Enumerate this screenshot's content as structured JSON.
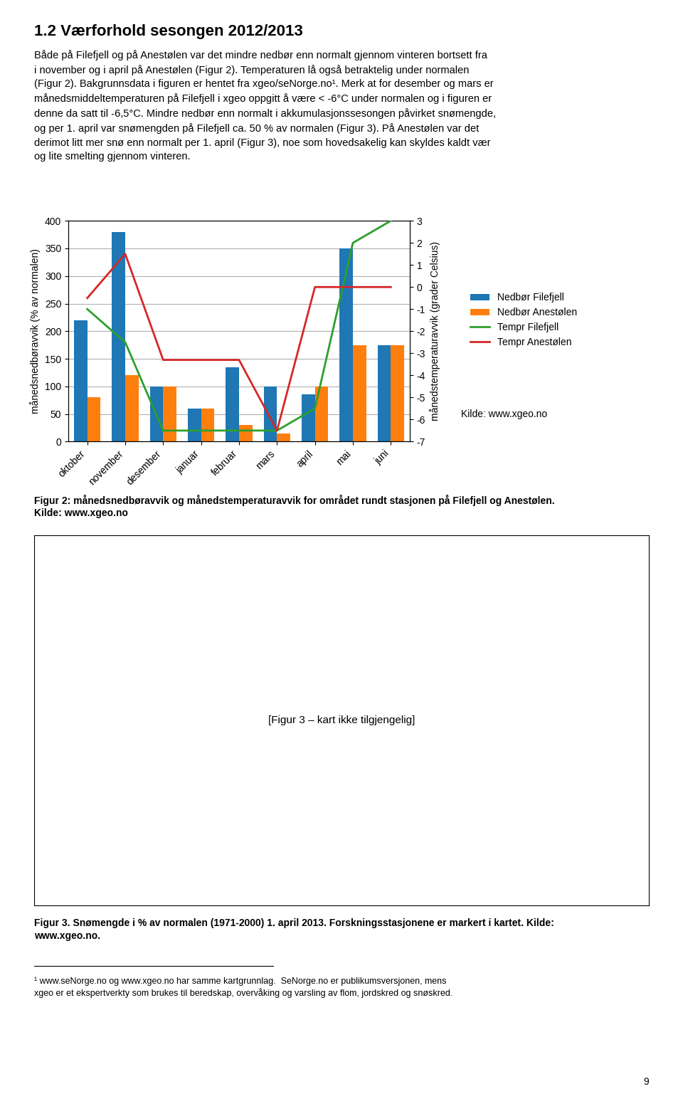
{
  "chart_data": {
    "type": "bar",
    "title": "1.2 Værforhold sesongen 2012/2013",
    "categories": [
      "oktober",
      "november",
      "desember",
      "januar",
      "februar",
      "mars",
      "april",
      "mai",
      "juni"
    ],
    "series": [
      {
        "name": "Nedbør Filefjell",
        "type": "bar",
        "values": [
          220,
          380,
          100,
          60,
          135,
          100,
          85,
          350,
          175
        ]
      },
      {
        "name": "Nedbør Anestølen",
        "type": "bar",
        "values": [
          80,
          120,
          100,
          60,
          30,
          15,
          100,
          175,
          175
        ]
      },
      {
        "name": "Tempr Filefjell",
        "type": "line",
        "axis": "y2",
        "values": [
          -1.0,
          -2.5,
          -6.5,
          -6.5,
          -6.5,
          -6.5,
          -5.5,
          2.0,
          3.0
        ]
      },
      {
        "name": "Tempr Anestølen",
        "type": "line",
        "axis": "y2",
        "values": [
          -0.5,
          1.5,
          -3.3,
          -3.3,
          -3.3,
          -6.5,
          0.0,
          0.0,
          0.0
        ]
      }
    ],
    "ylabel": "månedsnedbøravvik (% av normalen)",
    "y2label": "månedstemperaturavvik (grader Celsius)",
    "ylim": [
      0,
      400
    ],
    "yticks": [
      0,
      50,
      100,
      150,
      200,
      250,
      300,
      350,
      400
    ],
    "y2lim": [
      -7,
      3
    ],
    "y2ticks": [
      -7,
      -6,
      -5,
      -4,
      -3,
      -2,
      -1,
      0,
      1,
      2,
      3
    ],
    "grid": true,
    "legend": "right",
    "annotations": [
      "Både på Filefjell og på Anestølen var det mindre nedbør enn normalt gjennom vinteren bortsett fra\ni november og i april på Anestølen (Figur 2). Temperaturen lå også betraktelig under normalen\n(Figur 2). Bakgrunnsdata i figuren er hentet fra xgeo/seNorge.no¹. Merk at for desember og mars er\nmånedsmiddeltemperaturen på Filefjell i xgeo oppgitt å være < -6°C under normalen og i figuren er\ndenne da satt til -6,5°C. Mindre nedbør enn normalt i akkumulasjonssesongen påvirket snømengde,\nog per 1. april var snømengden på Filefjell ca. 50 % av normalen (Figur 3). På Anestølen var det\nderimot litt mer snø enn normalt per 1. april (Figur 3), noe som hovedsakelig kan skyldes kaldt vær\nog lite smelting gjennom vinteren.",
      "Kilde: www.xgeo.no",
      "Figur 2: månedsnedbøravvik og månedstemperaturavvik for området rundt stasjonen på Filefjell og Anestølen.\nKilde: www.xgeo.no",
      "[Figur 3 – kart ikke tilgjengelig]",
      "Figur 3. Snømengde i % av normalen (1971-2000) 1. april 2013. Forskningsstasjonene er markert i kartet. Kilde:\nwww.xgeo.no.",
      "¹ www.seNorge.no og www.xgeo.no har samme kartgrunnlag.  SeNorge.no er publikumsversjonen, mens\nxgeo er et ekspertverkty som brukes til beredskap, overvåking og varsling av flom, jordskred og snøskred.",
      "9"
    ]
  }
}
